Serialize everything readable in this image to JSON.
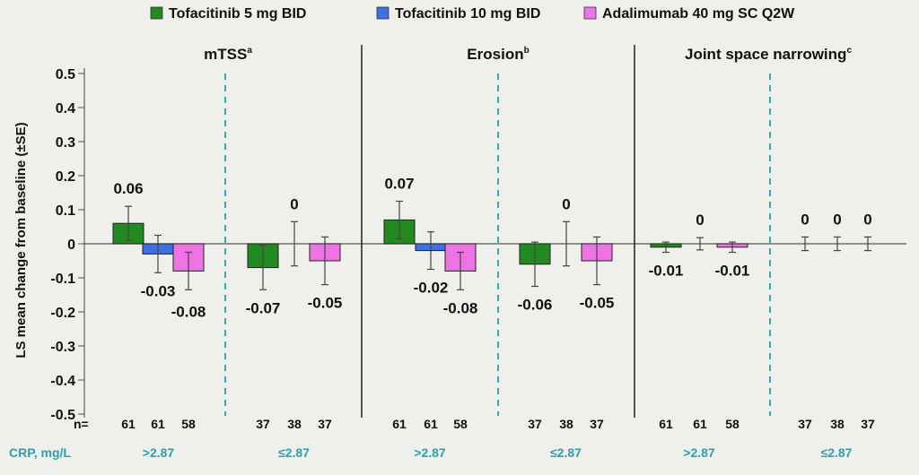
{
  "chart_data": {
    "type": "bar",
    "ylabel": "LS mean change from baseline (±SE)",
    "ylim": [
      -0.5,
      0.5
    ],
    "yticks": [
      "0.5",
      "0.4",
      "0.3",
      "0.2",
      "0.1",
      "0",
      "-0.1",
      "-0.2",
      "-0.3",
      "-0.4",
      "-0.5"
    ],
    "ytick_values": [
      0.5,
      0.4,
      0.3,
      0.2,
      0.1,
      0,
      -0.1,
      -0.2,
      -0.3,
      -0.4,
      -0.5
    ],
    "legend": [
      {
        "name": "Tofacitinib 5 mg BID",
        "color": "#218a21"
      },
      {
        "name": "Tofacitinib 10 mg BID",
        "color": "#3f6fe0"
      },
      {
        "name": "Adalimumab 40 mg SC Q2W",
        "color": "#ee74e6"
      }
    ],
    "n_label": "n=",
    "crp_label": "CRP, mg/L",
    "panels": [
      {
        "title": "mTSS",
        "superscript": "a",
        "groups": [
          {
            "crp": ">2.87",
            "values": [
              0.06,
              -0.03,
              -0.08
            ],
            "se": [
              0.05,
              0.055,
              0.055
            ],
            "labels": [
              "0.06",
              "-0.03",
              "-0.08"
            ],
            "n": [
              "61",
              "61",
              "58"
            ]
          },
          {
            "crp": "≤2.87",
            "values": [
              -0.07,
              0,
              -0.05
            ],
            "se": [
              0.065,
              0.065,
              0.07
            ],
            "labels": [
              "-0.07",
              "0",
              "-0.05"
            ],
            "n": [
              "37",
              "38",
              "37"
            ]
          }
        ]
      },
      {
        "title": "Erosion",
        "superscript": "b",
        "groups": [
          {
            "crp": ">2.87",
            "values": [
              0.07,
              -0.02,
              -0.08
            ],
            "se": [
              0.055,
              0.055,
              0.055
            ],
            "labels": [
              "0.07",
              "-0.02",
              "-0.08"
            ],
            "n": [
              "61",
              "61",
              "58"
            ]
          },
          {
            "crp": "≤2.87",
            "values": [
              -0.06,
              0,
              -0.05
            ],
            "se": [
              0.065,
              0.065,
              0.07
            ],
            "labels": [
              "-0.06",
              "0",
              "-0.05"
            ],
            "n": [
              "37",
              "38",
              "37"
            ]
          }
        ]
      },
      {
        "title": "Joint space narrowing",
        "superscript": "c",
        "groups": [
          {
            "crp": ">2.87",
            "values": [
              -0.01,
              0,
              -0.01
            ],
            "se": [
              0.015,
              0.018,
              0.015
            ],
            "labels": [
              "-0.01",
              "0",
              "-0.01"
            ],
            "n": [
              "61",
              "61",
              "58"
            ]
          },
          {
            "crp": "≤2.87",
            "values": [
              0,
              0,
              0
            ],
            "se": [
              0.02,
              0.02,
              0.02
            ],
            "labels": [
              "0",
              "0",
              "0"
            ],
            "n": [
              "37",
              "38",
              "37"
            ]
          }
        ]
      }
    ]
  }
}
